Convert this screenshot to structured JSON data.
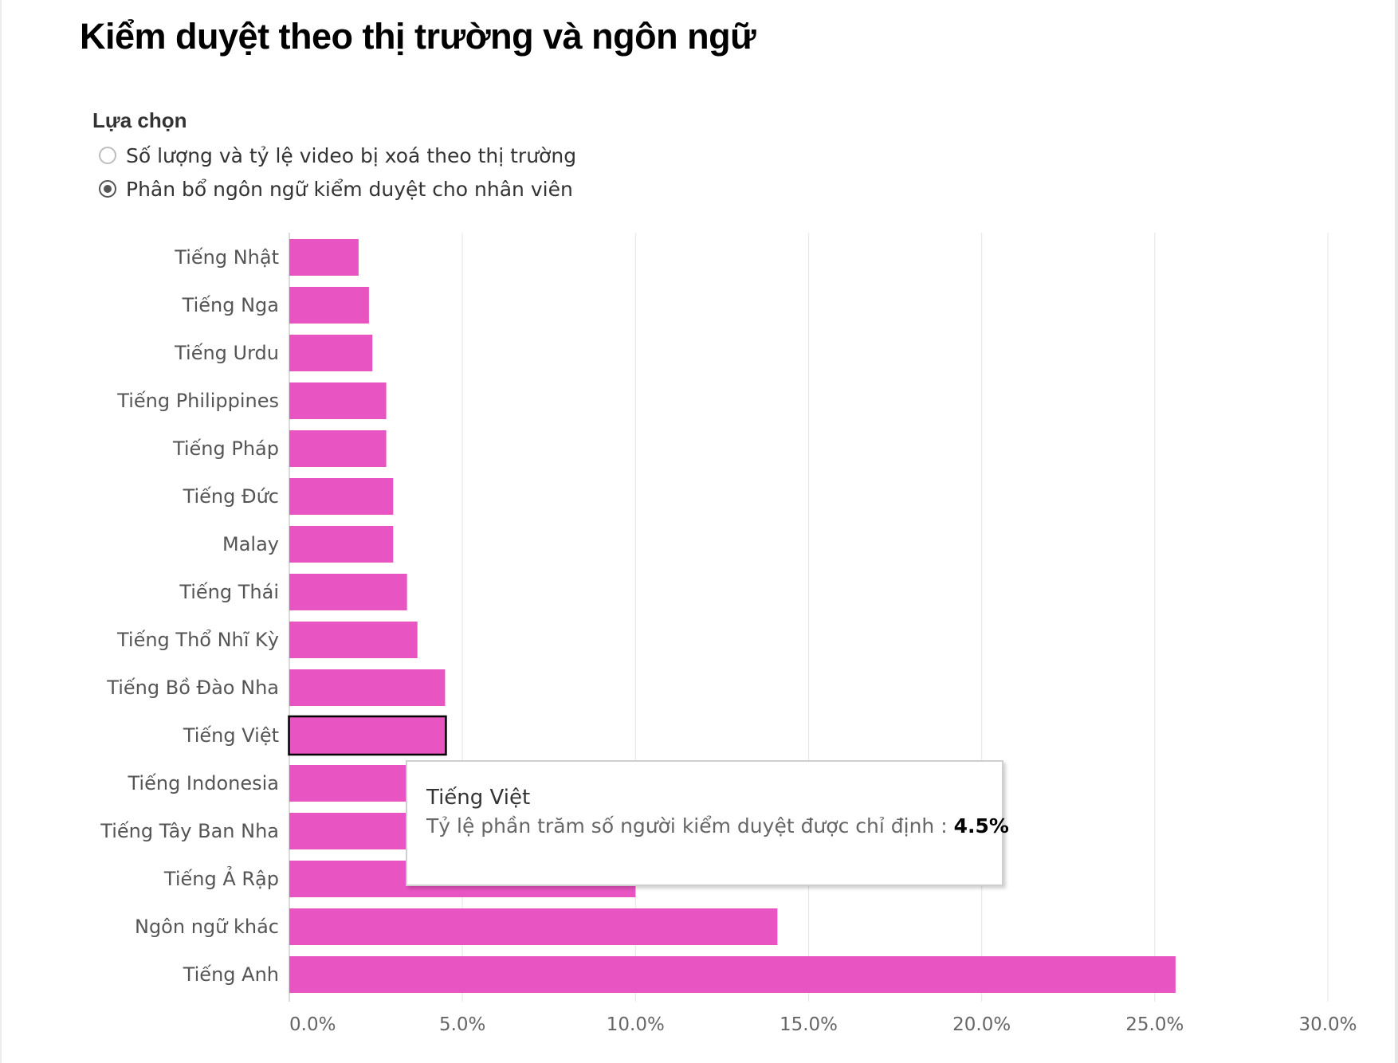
{
  "title": "Kiểm duyệt theo thị trường và ngôn ngữ",
  "selector": {
    "label": "Lựa chọn",
    "options": [
      {
        "label": "Số lượng và tỷ lệ video bị xoá theo thị trường",
        "checked": false
      },
      {
        "label": "Phân bổ ngôn ngữ kiểm duyệt cho nhân viên",
        "checked": true
      }
    ]
  },
  "colors": {
    "bar": "#e854c2",
    "grid": "#e8e8e8",
    "highlight_border": "#000000"
  },
  "tooltip": {
    "title": "Tiếng Việt",
    "measure_label": "Tỷ lệ phần trăm số người kiểm duyệt được chỉ định :",
    "value_label": "4.5%"
  },
  "chart_data": {
    "type": "bar",
    "orientation": "horizontal",
    "unit": "%",
    "categories": [
      "Tiếng Nhật",
      "Tiếng Nga",
      "Tiếng Urdu",
      "Tiếng Philippines",
      "Tiếng Pháp",
      "Tiếng Đức",
      "Malay",
      "Tiếng Thái",
      "Tiếng Thổ Nhĩ Kỳ",
      "Tiếng Bồ Đào Nha",
      "Tiếng Việt",
      "Tiếng Indonesia",
      "Tiếng Tây Ban Nha",
      "Tiếng Ả Rập",
      "Ngôn ngữ khác",
      "Tiếng Anh"
    ],
    "values": [
      2.0,
      2.3,
      2.4,
      2.8,
      2.8,
      3.0,
      3.0,
      3.4,
      3.7,
      4.5,
      4.5,
      4.9,
      5.6,
      10.0,
      14.1,
      25.6
    ],
    "highlighted": "Tiếng Việt",
    "xlim": [
      0,
      30
    ],
    "xticks": [
      0,
      5,
      10,
      15,
      20,
      25,
      30
    ],
    "xtick_labels": [
      "0.0%",
      "5.0%",
      "10.0%",
      "15.0%",
      "20.0%",
      "25.0%",
      "30.0%"
    ],
    "grid": true,
    "title": "",
    "xlabel": "",
    "ylabel": ""
  }
}
